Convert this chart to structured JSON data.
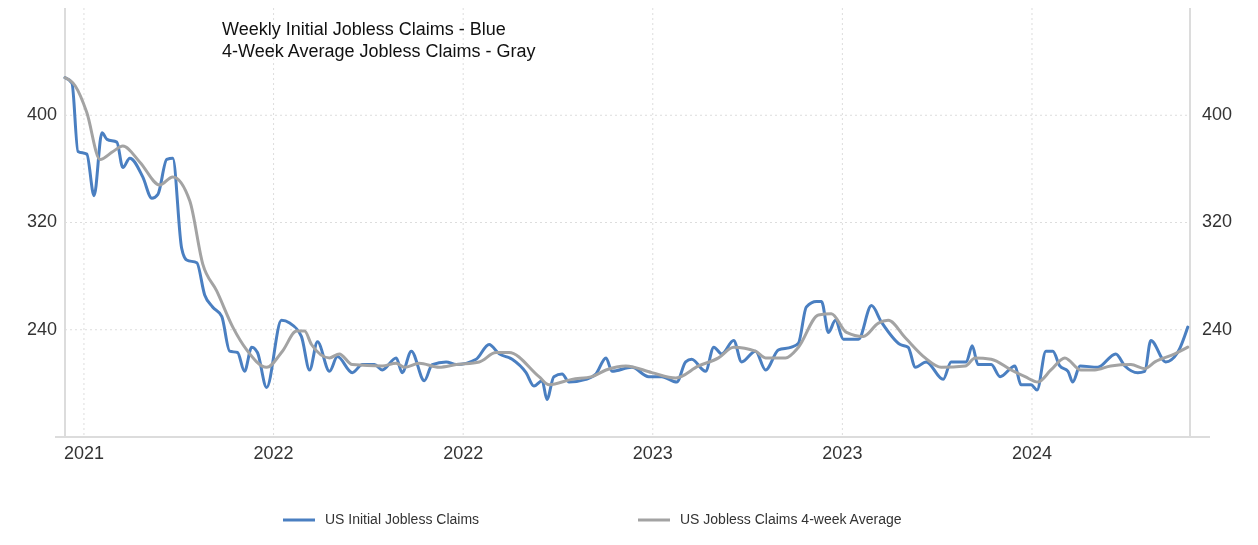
{
  "chart_data": {
    "type": "line",
    "title": "Weekly Initial Jobless Claims - Blue",
    "subtitle": "4-Week Average Jobless Claims - Gray",
    "xlim": [
      2020.94,
      2024.5
    ],
    "xticks": [
      {
        "value": 2021.0,
        "label": "2021"
      },
      {
        "value": 2021.6,
        "label": "2022"
      },
      {
        "value": 2022.2,
        "label": "2022"
      },
      {
        "value": 2022.8,
        "label": "2023"
      },
      {
        "value": 2023.4,
        "label": "2023"
      },
      {
        "value": 2024.0,
        "label": "2024"
      }
    ],
    "ylim": [
      160,
      480
    ],
    "yticks": [
      240,
      320,
      400
    ],
    "y2lim": [
      160,
      480
    ],
    "y2ticks": [
      240,
      320,
      400
    ],
    "grid": true,
    "legend": "bottom",
    "line_style": "solid",
    "marker": "none",
    "series": [
      {
        "name": "US Initial Jobless Claims",
        "color": "#4a7fc1",
        "x": [
          2020.94,
          2020.962,
          2020.981,
          2021.009,
          2021.032,
          2021.057,
          2021.073,
          2021.104,
          2021.123,
          2021.145,
          2021.186,
          2021.215,
          2021.234,
          2021.262,
          2021.281,
          2021.309,
          2021.325,
          2021.357,
          2021.382,
          2021.407,
          2021.436,
          2021.461,
          2021.486,
          2021.508,
          2021.531,
          2021.549,
          2021.578,
          2021.625,
          2021.651,
          2021.688,
          2021.714,
          2021.739,
          2021.777,
          2021.802,
          2021.849,
          2021.881,
          2021.919,
          2021.944,
          2021.988,
          2022.007,
          2022.036,
          2022.077,
          2022.102,
          2022.146,
          2022.178,
          2022.241,
          2022.282,
          2022.314,
          2022.355,
          2022.399,
          2022.424,
          2022.45,
          2022.465,
          2022.487,
          2022.513,
          2022.535,
          2022.588,
          2022.62,
          2022.652,
          2022.671,
          2022.734,
          2022.787,
          2022.828,
          2022.876,
          2022.904,
          2022.923,
          2022.967,
          2022.993,
          2023.018,
          2023.056,
          2023.081,
          2023.125,
          2023.157,
          2023.198,
          2023.239,
          2023.261,
          2023.286,
          2023.318,
          2023.334,
          2023.356,
          2023.378,
          2023.403,
          2023.451,
          2023.492,
          2023.523,
          2023.583,
          2023.608,
          2023.631,
          2023.665,
          2023.719,
          2023.744,
          2023.792,
          2023.811,
          2023.829,
          2023.871,
          2023.899,
          2023.946,
          2023.965,
          2023.997,
          2024.016,
          2024.044,
          2024.066,
          2024.088,
          2024.114,
          2024.129,
          2024.152,
          2024.208,
          2024.265,
          2024.294,
          2024.335,
          2024.357,
          2024.376,
          2024.423,
          2024.461,
          2024.493
        ],
        "values": [
          428,
          424,
          373,
          371,
          340,
          387,
          382,
          380,
          361,
          368,
          354,
          338,
          341,
          367,
          368,
          301,
          292,
          290,
          266,
          257,
          250,
          224,
          223,
          209,
          227,
          223,
          197,
          247,
          245,
          235,
          210,
          231,
          209,
          220,
          208,
          214,
          214,
          210,
          219,
          208,
          224,
          202,
          214,
          216,
          214,
          218,
          229,
          222,
          218,
          208,
          198,
          202,
          188,
          205,
          207,
          201,
          203,
          207,
          219,
          209,
          212,
          205,
          205,
          201,
          216,
          218,
          209,
          227,
          222,
          232,
          216,
          224,
          210,
          225,
          227,
          230,
          257,
          261,
          261,
          238,
          247,
          233,
          233,
          258,
          246,
          229,
          227,
          212,
          216,
          203,
          216,
          216,
          228,
          214,
          214,
          205,
          213,
          199,
          199,
          195,
          224,
          224,
          213,
          209,
          201,
          213,
          212,
          222,
          213,
          208,
          209,
          232,
          216,
          223,
          242
        ]
      },
      {
        "name": "US Jobless Claims 4-week Average",
        "color": "#a3a3a3",
        "x": [
          2020.94,
          2020.972,
          2021.009,
          2021.051,
          2021.092,
          2021.123,
          2021.177,
          2021.24,
          2021.281,
          2021.335,
          2021.376,
          2021.42,
          2021.471,
          2021.515,
          2021.578,
          2021.628,
          2021.673,
          2021.698,
          2021.72,
          2021.777,
          2021.808,
          2021.849,
          2021.944,
          2021.988,
          2022.014,
          2022.061,
          2022.124,
          2022.178,
          2022.251,
          2022.304,
          2022.345,
          2022.44,
          2022.472,
          2022.544,
          2022.607,
          2022.652,
          2022.715,
          2022.797,
          2022.873,
          2022.945,
          2023.008,
          2023.056,
          2023.125,
          2023.157,
          2023.22,
          2023.261,
          2023.324,
          2023.365,
          2023.413,
          2023.466,
          2023.514,
          2023.545,
          2023.599,
          2023.662,
          2023.713,
          2023.789,
          2023.82,
          2023.871,
          2023.934,
          2023.978,
          2024.019,
          2024.06,
          2024.104,
          2024.155,
          2024.199,
          2024.249,
          2024.313,
          2024.357,
          2024.389,
          2024.452,
          2024.493
        ],
        "values": [
          428,
          422,
          402,
          367,
          373,
          377,
          365,
          348,
          354,
          336,
          289,
          269,
          242,
          225,
          212,
          224,
          239,
          239,
          229,
          219,
          222,
          214,
          213,
          215,
          212,
          215,
          212,
          214,
          216,
          223,
          223,
          205,
          199,
          203,
          205,
          210,
          213,
          208,
          204,
          213,
          219,
          227,
          224,
          219,
          219,
          227,
          251,
          252,
          238,
          235,
          245,
          247,
          234,
          219,
          212,
          213,
          219,
          218,
          210,
          205,
          201,
          210,
          219,
          210,
          210,
          213,
          214,
          211,
          216,
          222,
          227
        ]
      }
    ]
  }
}
